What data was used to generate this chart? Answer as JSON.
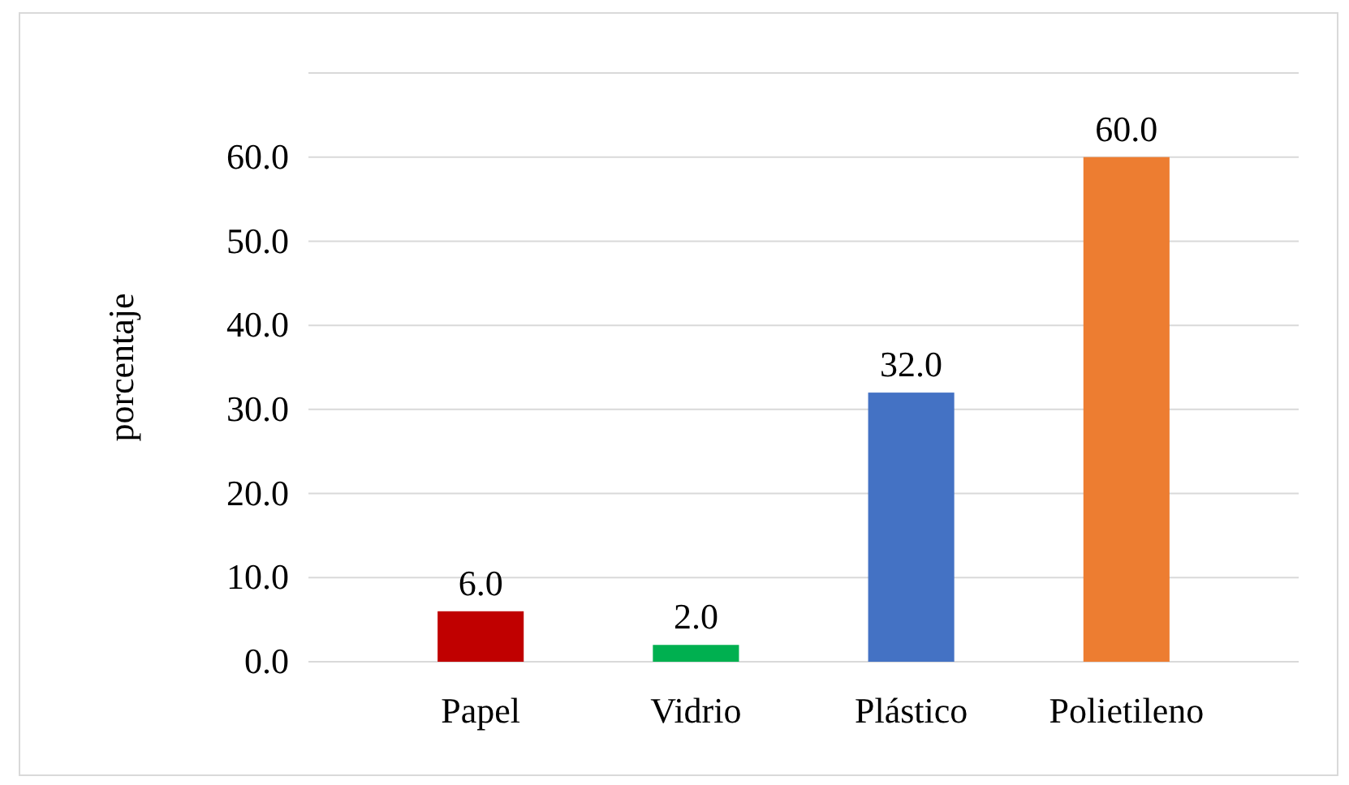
{
  "chart_data": {
    "type": "bar",
    "ylabel": "porcentaje",
    "categories": [
      "Papel",
      "Vidrio",
      "Plástico",
      "Polietileno"
    ],
    "values": [
      6,
      2,
      32,
      60
    ],
    "colors": [
      "#c00000",
      "#00b050",
      "#4472c4",
      "#ed7d31"
    ],
    "value_labels": [
      "6.0",
      "2.0",
      "32.0",
      "60.0"
    ],
    "ylim": [
      0,
      70
    ],
    "yticks": [
      {
        "value": 0,
        "label": "0.0"
      },
      {
        "value": 10,
        "label": "10.0"
      },
      {
        "value": 20,
        "label": "20.0"
      },
      {
        "value": 30,
        "label": "30.0"
      },
      {
        "value": 40,
        "label": "40.0"
      },
      {
        "value": 50,
        "label": "50.0"
      },
      {
        "value": 60,
        "label": "60.0"
      },
      {
        "value": 70,
        "label": null
      }
    ],
    "grid": "y"
  }
}
